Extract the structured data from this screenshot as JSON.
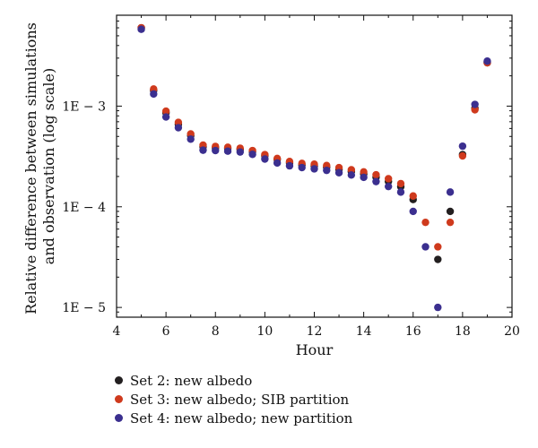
{
  "chart_data": {
    "type": "scatter",
    "title": "",
    "xlabel": "Hour",
    "ylabel_lines": [
      "Relative difference between simulations",
      "and observation (log scale)"
    ],
    "yscale": "log",
    "xlim": [
      4,
      20
    ],
    "ylim": [
      8e-06,
      0.008
    ],
    "x_ticks": [
      4,
      6,
      8,
      10,
      12,
      14,
      16,
      18,
      20
    ],
    "x_tick_labels": [
      "4",
      "6",
      "8",
      "10",
      "12",
      "14",
      "16",
      "18",
      "20"
    ],
    "y_ticks": [
      1e-05,
      0.0001,
      0.001
    ],
    "y_tick_labels": [
      "1E − 5",
      "1E − 4",
      "1E − 3"
    ],
    "grid": false,
    "legend_position": "bottom",
    "series": [
      {
        "name": "Set 2: new albedo",
        "color": "#231f20",
        "points": [
          [
            5,
            0.006
          ],
          [
            5.5,
            0.00143
          ],
          [
            6,
            0.00086
          ],
          [
            6.5,
            0.00066
          ],
          [
            7,
            0.00051
          ],
          [
            7.5,
            0.000395
          ],
          [
            8,
            0.000385
          ],
          [
            8.5,
            0.000378
          ],
          [
            9,
            0.00037
          ],
          [
            9.5,
            0.000352
          ],
          [
            10,
            0.000322
          ],
          [
            10.5,
            0.000295
          ],
          [
            11,
            0.000272
          ],
          [
            11.5,
            0.00026
          ],
          [
            12,
            0.000255
          ],
          [
            12.5,
            0.000247
          ],
          [
            13,
            0.000235
          ],
          [
            13.5,
            0.000223
          ],
          [
            14,
            0.000212
          ],
          [
            14.5,
            0.000197
          ],
          [
            15,
            0.000178
          ],
          [
            15.5,
            0.000158
          ],
          [
            16,
            0.000118
          ],
          [
            17,
            3e-05
          ],
          [
            17.5,
            9e-05
          ],
          [
            18,
            0.00033
          ],
          [
            18.5,
            0.00095
          ],
          [
            19,
            0.0027
          ]
        ]
      },
      {
        "name": "Set 3: new albedo; SIB partition",
        "color": "#cf3a1d",
        "points": [
          [
            5,
            0.006
          ],
          [
            5.5,
            0.00148
          ],
          [
            6,
            0.00089
          ],
          [
            6.5,
            0.00069
          ],
          [
            7,
            0.00053
          ],
          [
            7.5,
            0.00041
          ],
          [
            8,
            0.000398
          ],
          [
            8.5,
            0.00039
          ],
          [
            9,
            0.000382
          ],
          [
            9.5,
            0.000362
          ],
          [
            10,
            0.00033
          ],
          [
            10.5,
            0.000302
          ],
          [
            11,
            0.000282
          ],
          [
            11.5,
            0.00027
          ],
          [
            12,
            0.000265
          ],
          [
            12.5,
            0.000257
          ],
          [
            13,
            0.000245
          ],
          [
            13.5,
            0.000233
          ],
          [
            14,
            0.000222
          ],
          [
            14.5,
            0.000208
          ],
          [
            15,
            0.00019
          ],
          [
            15.5,
            0.00017
          ],
          [
            16,
            0.000128
          ],
          [
            16.5,
            7e-05
          ],
          [
            17,
            4e-05
          ],
          [
            17.5,
            7e-05
          ],
          [
            18,
            0.00032
          ],
          [
            18.5,
            0.00092
          ],
          [
            19,
            0.0027
          ]
        ]
      },
      {
        "name": "Set 4: new albedo; new partition",
        "color": "#3b2f8f",
        "points": [
          [
            5,
            0.0058
          ],
          [
            5.5,
            0.00132
          ],
          [
            6,
            0.00078
          ],
          [
            6.5,
            0.00061
          ],
          [
            7,
            0.00047
          ],
          [
            7.5,
            0.000365
          ],
          [
            8,
            0.000362
          ],
          [
            8.5,
            0.000357
          ],
          [
            9,
            0.00035
          ],
          [
            9.5,
            0.000332
          ],
          [
            10,
            0.000298
          ],
          [
            10.5,
            0.000272
          ],
          [
            11,
            0.000255
          ],
          [
            11.5,
            0.000245
          ],
          [
            12,
            0.000238
          ],
          [
            12.5,
            0.00023
          ],
          [
            13,
            0.000218
          ],
          [
            13.5,
            0.000207
          ],
          [
            14,
            0.000196
          ],
          [
            14.5,
            0.000178
          ],
          [
            15,
            0.000159
          ],
          [
            15.5,
            0.00014
          ],
          [
            16,
            9e-05
          ],
          [
            16.5,
            4e-05
          ],
          [
            17,
            1e-05
          ],
          [
            17.5,
            0.00014
          ],
          [
            18,
            0.0004
          ],
          [
            18.5,
            0.00104
          ],
          [
            19,
            0.0028
          ]
        ]
      }
    ]
  }
}
